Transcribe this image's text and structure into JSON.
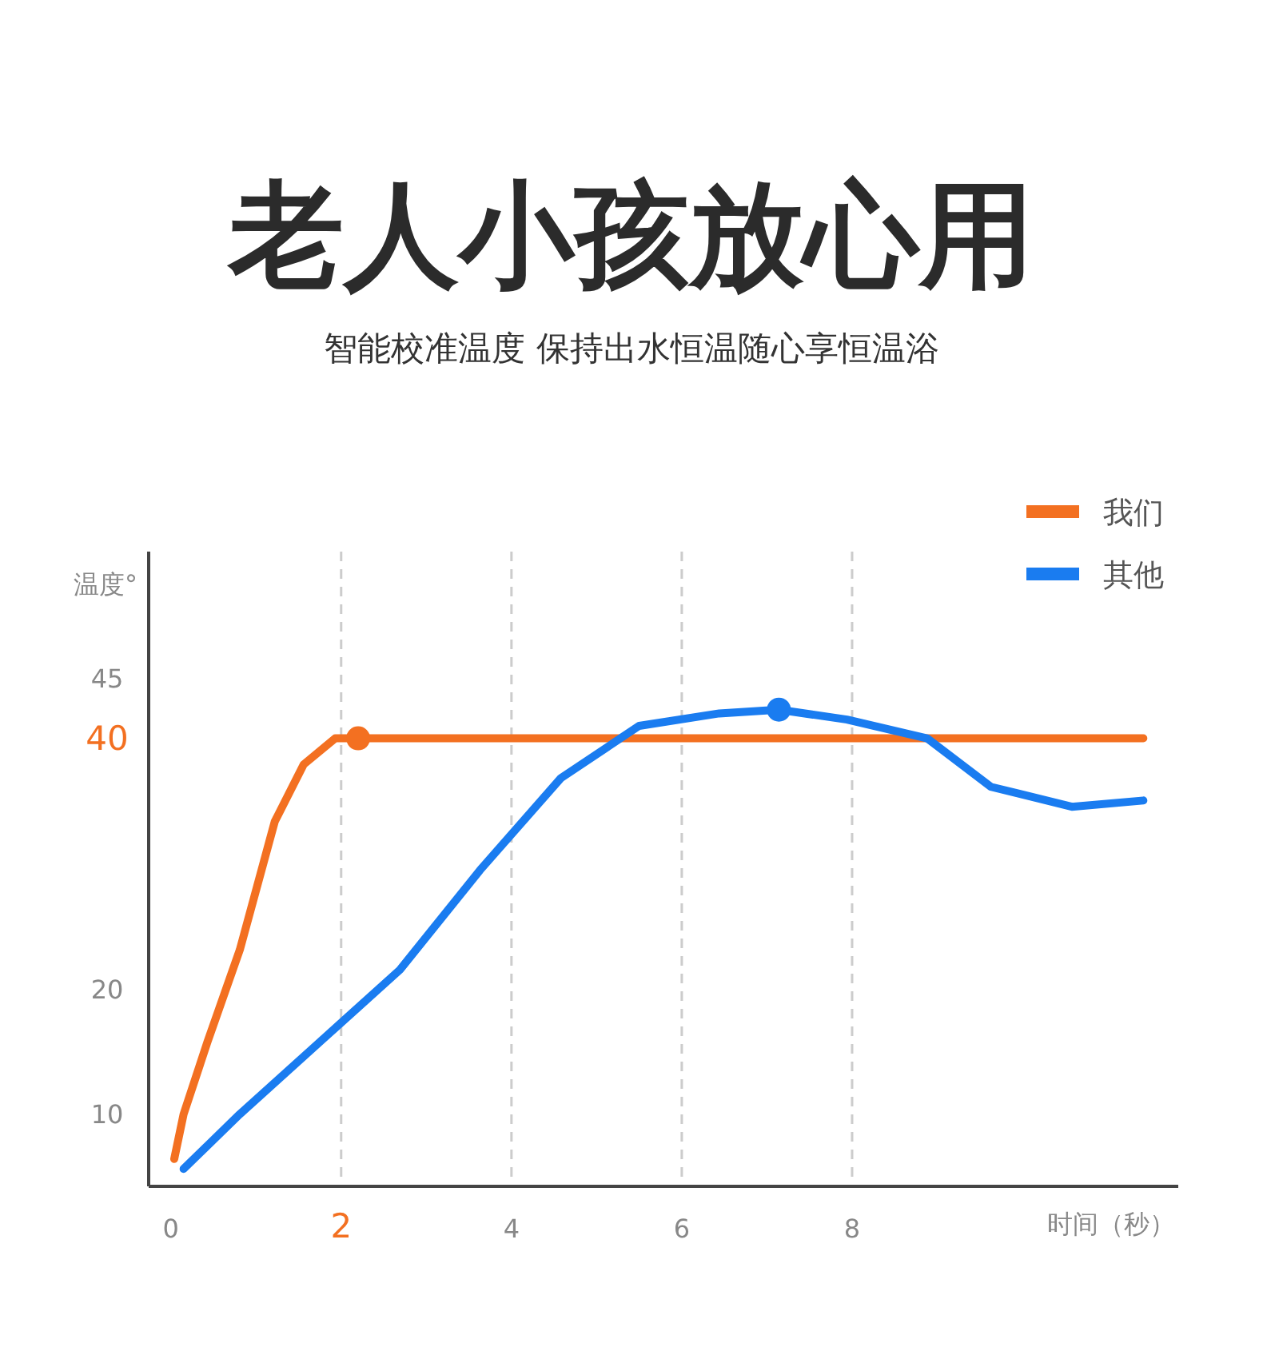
{
  "chart_data": {
    "type": "line",
    "title": "老人小孩放心用",
    "subtitle": "智能校准温度 保持出水恒温随心享恒温浴",
    "xlabel": "时间（秒）",
    "ylabel": "温度°",
    "xlim": [
      -0.26,
      11.83
    ],
    "xticks": [
      0,
      2,
      4,
      6,
      8
    ],
    "ylim": [
      4,
      55
    ],
    "yticks": [
      10,
      20,
      40,
      45
    ],
    "grid": "x",
    "legend": "top right",
    "line_style": "solid",
    "series": [
      {
        "name": "我们",
        "color": "#f37021",
        "x": [
          0.04,
          0.15,
          0.43,
          0.81,
          1.22,
          1.56,
          1.93,
          2.22,
          11.42
        ],
        "values": [
          6.2,
          9.8,
          15.6,
          23,
          33.3,
          37.9,
          40,
          40,
          40
        ]
      },
      {
        "name": "其他",
        "color": "#1a7cf0",
        "x": [
          0.15,
          0.81,
          1.75,
          2.69,
          3.63,
          4.58,
          5.5,
          6.44,
          7.14,
          7.94,
          8.88,
          9.63,
          10.58,
          11.42
        ],
        "values": [
          5.4,
          9.8,
          15.6,
          21.4,
          29.4,
          36.8,
          41,
          42,
          42.3,
          41.5,
          40,
          36.1,
          34.5,
          35
        ]
      },
      {
        "type": "scatter",
        "marker": "circle",
        "color": "#f37021",
        "x": [
          2.2
        ],
        "values": [
          40
        ]
      },
      {
        "type": "scatter",
        "marker": "circle",
        "color": "#1a7cf0",
        "x": [
          7.14
        ],
        "values": [
          42.3
        ]
      }
    ]
  }
}
